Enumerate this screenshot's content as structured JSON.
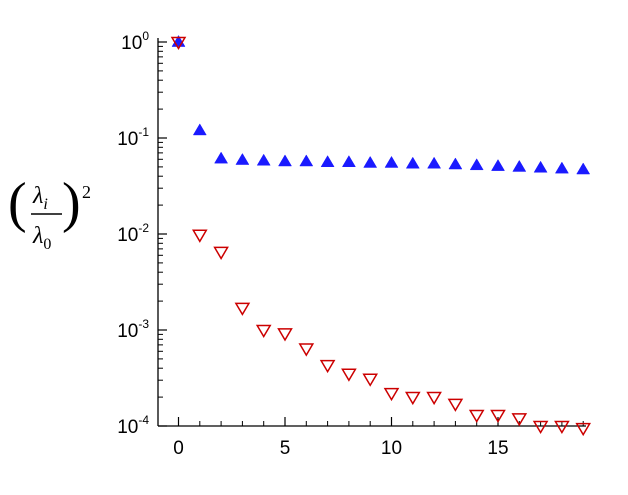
{
  "chart_data": {
    "type": "scatter",
    "title": "",
    "xlabel": "",
    "ylabel": "(λi/λ0)^2",
    "ylabel_parts": {
      "open": "(",
      "num": "λ",
      "num_sub": "i",
      "den": "λ",
      "den_sub": "0",
      "close": ")",
      "power": "2"
    },
    "yscale": "log",
    "xlim": [
      -1,
      20
    ],
    "ylim": [
      0.0001,
      1
    ],
    "x_ticks": [
      "0",
      "5",
      "10",
      "15"
    ],
    "x_tick_values": [
      0,
      5,
      10,
      15
    ],
    "y_ticks": [
      {
        "base": "10",
        "exp": "0",
        "value": 1
      },
      {
        "base": "10",
        "exp": "-1",
        "value": 0.1
      },
      {
        "base": "10",
        "exp": "-2",
        "value": 0.01
      },
      {
        "base": "10",
        "exp": "-3",
        "value": 0.001
      },
      {
        "base": "10",
        "exp": "-4",
        "value": 0.0001
      }
    ],
    "grid": false,
    "legend": "none",
    "series": [
      {
        "marker": "triangle-up-filled",
        "color": "#1a1aff",
        "x": [
          0,
          1,
          2,
          3,
          4,
          5,
          6,
          7,
          8,
          9,
          10,
          11,
          12,
          13,
          14,
          15,
          16,
          17,
          18,
          19
        ],
        "y": [
          1.0,
          0.12,
          0.061,
          0.059,
          0.058,
          0.057,
          0.057,
          0.056,
          0.056,
          0.055,
          0.055,
          0.054,
          0.054,
          0.053,
          0.052,
          0.051,
          0.05,
          0.049,
          0.048,
          0.047
        ]
      },
      {
        "marker": "triangle-down-open",
        "color": "#cc0000",
        "x": [
          0,
          1,
          2,
          3,
          4,
          5,
          6,
          7,
          8,
          9,
          10,
          11,
          12,
          13,
          14,
          15,
          16,
          17,
          18,
          19
        ],
        "y": [
          1.0,
          0.0098,
          0.0065,
          0.0017,
          0.001,
          0.00092,
          0.00064,
          0.00043,
          0.00035,
          0.00031,
          0.00022,
          0.0002,
          0.0002,
          0.00017,
          0.00013,
          0.00013,
          0.00012,
          0.0001,
          0.0001,
          9.5e-05
        ]
      }
    ]
  }
}
